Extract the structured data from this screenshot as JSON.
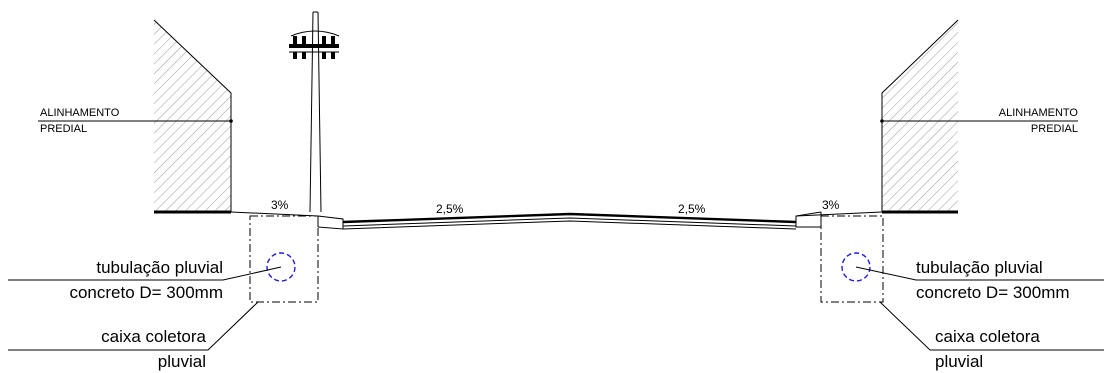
{
  "labels": {
    "alignment_left_line1": "ALINHAMENTO",
    "alignment_left_line2": "PREDIAL",
    "alignment_right_line1": "ALINHAMENTO",
    "alignment_right_line2": "PREDIAL",
    "slope_sidewalk_left": "3%",
    "slope_road_left": "2,5%",
    "slope_road_right": "2,5%",
    "slope_sidewalk_right": "3%",
    "pipe_left_line1": "tubulação pluvial",
    "pipe_left_line2": "concreto D= 300mm",
    "pipe_right_line1": "tubulação pluvial",
    "pipe_right_line2": "concreto D= 300mm",
    "box_left_line1": "caixa coletora",
    "box_left_line2": "pluvial",
    "box_right_line1": "caixa coletora",
    "box_right_line2": "pluvial"
  },
  "colors": {
    "line": "#000000",
    "pipe": "#1f1fd6",
    "hatch": "#9a9a9a"
  }
}
